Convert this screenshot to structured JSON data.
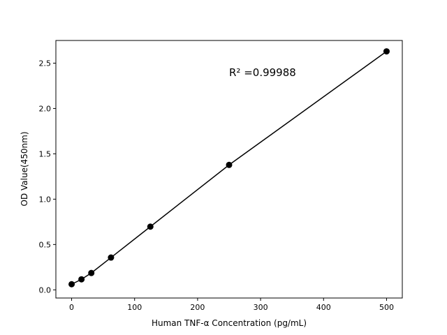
{
  "chart_data": {
    "type": "scatter",
    "title": "",
    "xlabel": "Human TNF-α Concentration (pg/mL)",
    "ylabel": "OD Value(450nm)",
    "xlim": [
      -25,
      525
    ],
    "ylim": [
      -0.09,
      2.75
    ],
    "xticks": [
      0,
      100,
      200,
      300,
      400,
      500
    ],
    "xtick_labels": [
      "0",
      "100",
      "200",
      "300",
      "400",
      "500"
    ],
    "yticks": [
      0,
      0.5,
      1.0,
      1.5,
      2.0,
      2.5
    ],
    "ytick_labels": [
      "0.0",
      "0.5",
      "1.0",
      "1.5",
      "2.0",
      "2.5"
    ],
    "grid": false,
    "annotation": "R² =0.99988",
    "series": [
      {
        "x": [
          0,
          15.625,
          31.25,
          62.5,
          125,
          250,
          500
        ],
        "y": [
          0.062,
          0.116,
          0.186,
          0.356,
          0.697,
          1.378,
          2.63
        ],
        "color": "#000000",
        "marker": "circle",
        "line": true
      }
    ]
  }
}
